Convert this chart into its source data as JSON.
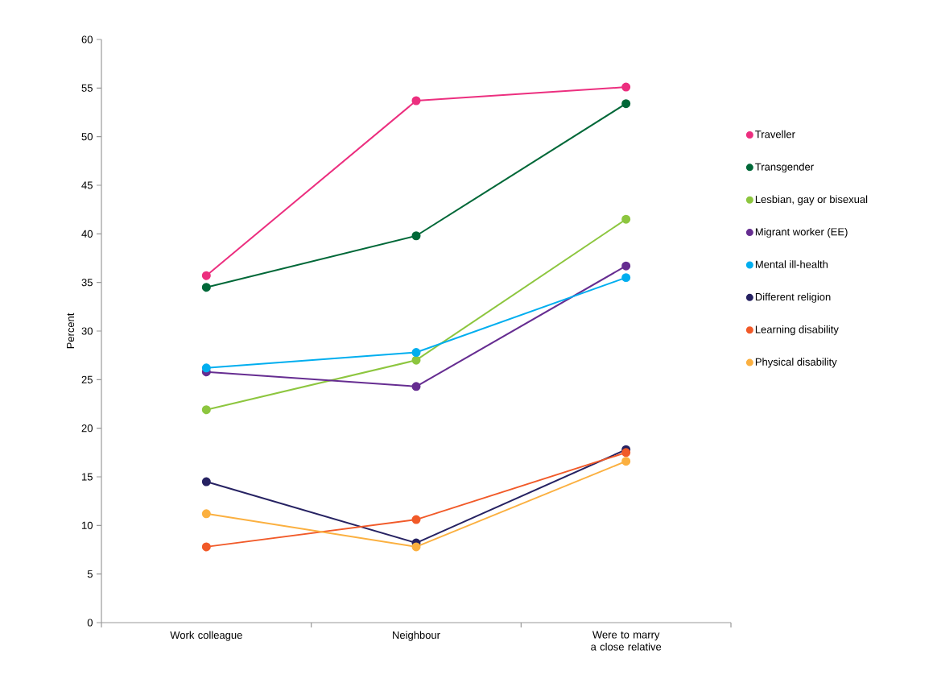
{
  "chart_data": {
    "type": "line",
    "ylabel": "Percent",
    "categories": [
      "Work colleague",
      "Neighbour",
      "Were to marry a close relative"
    ],
    "ylim": [
      0,
      60
    ],
    "yticks": [
      0,
      5,
      10,
      15,
      20,
      25,
      30,
      35,
      40,
      45,
      50,
      55,
      60
    ],
    "grid": false,
    "legend": "right",
    "marker": "circle",
    "line_style": "solid",
    "series": [
      {
        "name": "Traveller",
        "color": "#ec2f7f",
        "values": [
          35.7,
          53.7,
          55.1
        ]
      },
      {
        "name": "Transgender",
        "color": "#006838",
        "values": [
          34.5,
          39.8,
          53.4
        ]
      },
      {
        "name": "Lesbian, gay or bisexual",
        "color": "#8dc63f",
        "values": [
          21.9,
          27.0,
          41.5
        ]
      },
      {
        "name": "Migrant worker (EE)",
        "color": "#662d91",
        "values": [
          25.8,
          24.3,
          36.7
        ]
      },
      {
        "name": "Mental ill-health",
        "color": "#00aeef",
        "values": [
          26.2,
          27.8,
          35.5
        ]
      },
      {
        "name": "Different religion",
        "color": "#262262",
        "values": [
          14.5,
          8.2,
          17.8
        ]
      },
      {
        "name": "Learning disability",
        "color": "#f15a29",
        "values": [
          7.8,
          10.6,
          17.5
        ]
      },
      {
        "name": "Physical disability",
        "color": "#fbb040",
        "values": [
          11.2,
          7.8,
          16.6
        ]
      }
    ]
  }
}
